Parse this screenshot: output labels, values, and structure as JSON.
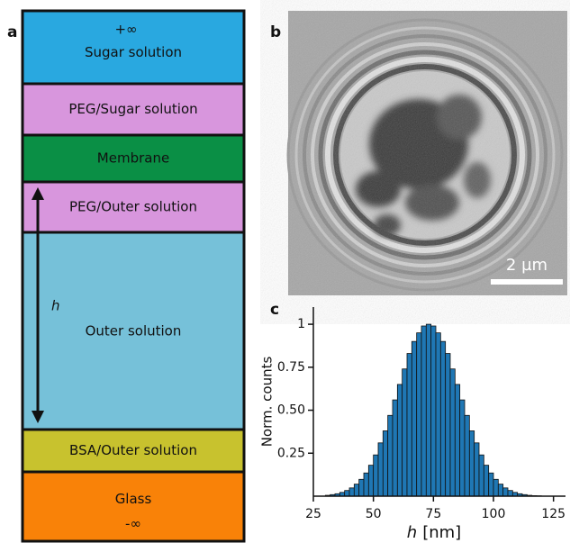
{
  "panels": [
    "a",
    "b",
    "c"
  ],
  "diagram": {
    "top_label": "+∞",
    "bottom_label": "-∞",
    "distance_label": "h",
    "layers": [
      {
        "label": "Sugar solution",
        "color": "#29a8e0"
      },
      {
        "label": "PEG/Sugar solution",
        "color": "#d896dd"
      },
      {
        "label": "Membrane",
        "color": "#0a8f45"
      },
      {
        "label": "PEG/Outer solution",
        "color": "#d896dd"
      },
      {
        "label": "Outer solution",
        "color": "#76c1d9"
      },
      {
        "label": "BSA/Outer solution",
        "color": "#c8c22e"
      },
      {
        "label": "Glass",
        "color": "#f98208"
      }
    ]
  },
  "image": {
    "scale_bar": "2 µm"
  },
  "chart_data": {
    "type": "histogram",
    "y_label": "Norm. counts",
    "x_label_var": "h",
    "x_label_unit": "[nm]",
    "color": "#1f77b4",
    "bins": [
      30,
      32,
      34,
      36,
      38,
      40,
      42,
      44,
      46,
      48,
      50,
      52,
      54,
      56,
      58,
      60,
      62,
      64,
      66,
      68,
      70,
      72,
      74,
      76,
      78,
      80,
      82,
      84,
      86,
      88,
      90,
      92,
      94,
      96,
      98,
      100,
      102,
      104,
      106,
      108,
      110,
      112,
      114,
      116,
      118,
      120
    ],
    "counts": [
      0.005,
      0.009,
      0.014,
      0.022,
      0.033,
      0.048,
      0.07,
      0.098,
      0.135,
      0.18,
      0.24,
      0.31,
      0.38,
      0.47,
      0.56,
      0.65,
      0.74,
      0.83,
      0.9,
      0.95,
      0.99,
      1,
      0.99,
      0.95,
      0.9,
      0.83,
      0.74,
      0.65,
      0.56,
      0.47,
      0.38,
      0.31,
      0.24,
      0.18,
      0.135,
      0.098,
      0.07,
      0.048,
      0.033,
      0.022,
      0.014,
      0.009,
      0.005,
      0.003,
      0.002
    ],
    "xlim": [
      25,
      130
    ],
    "ylim": [
      0,
      1.1
    ],
    "xticks": [
      25,
      50,
      75,
      100,
      125
    ],
    "yticks": [
      0.25,
      {
        "value": 0.5,
        "label": "0.50"
      },
      0.75,
      1
    ]
  }
}
